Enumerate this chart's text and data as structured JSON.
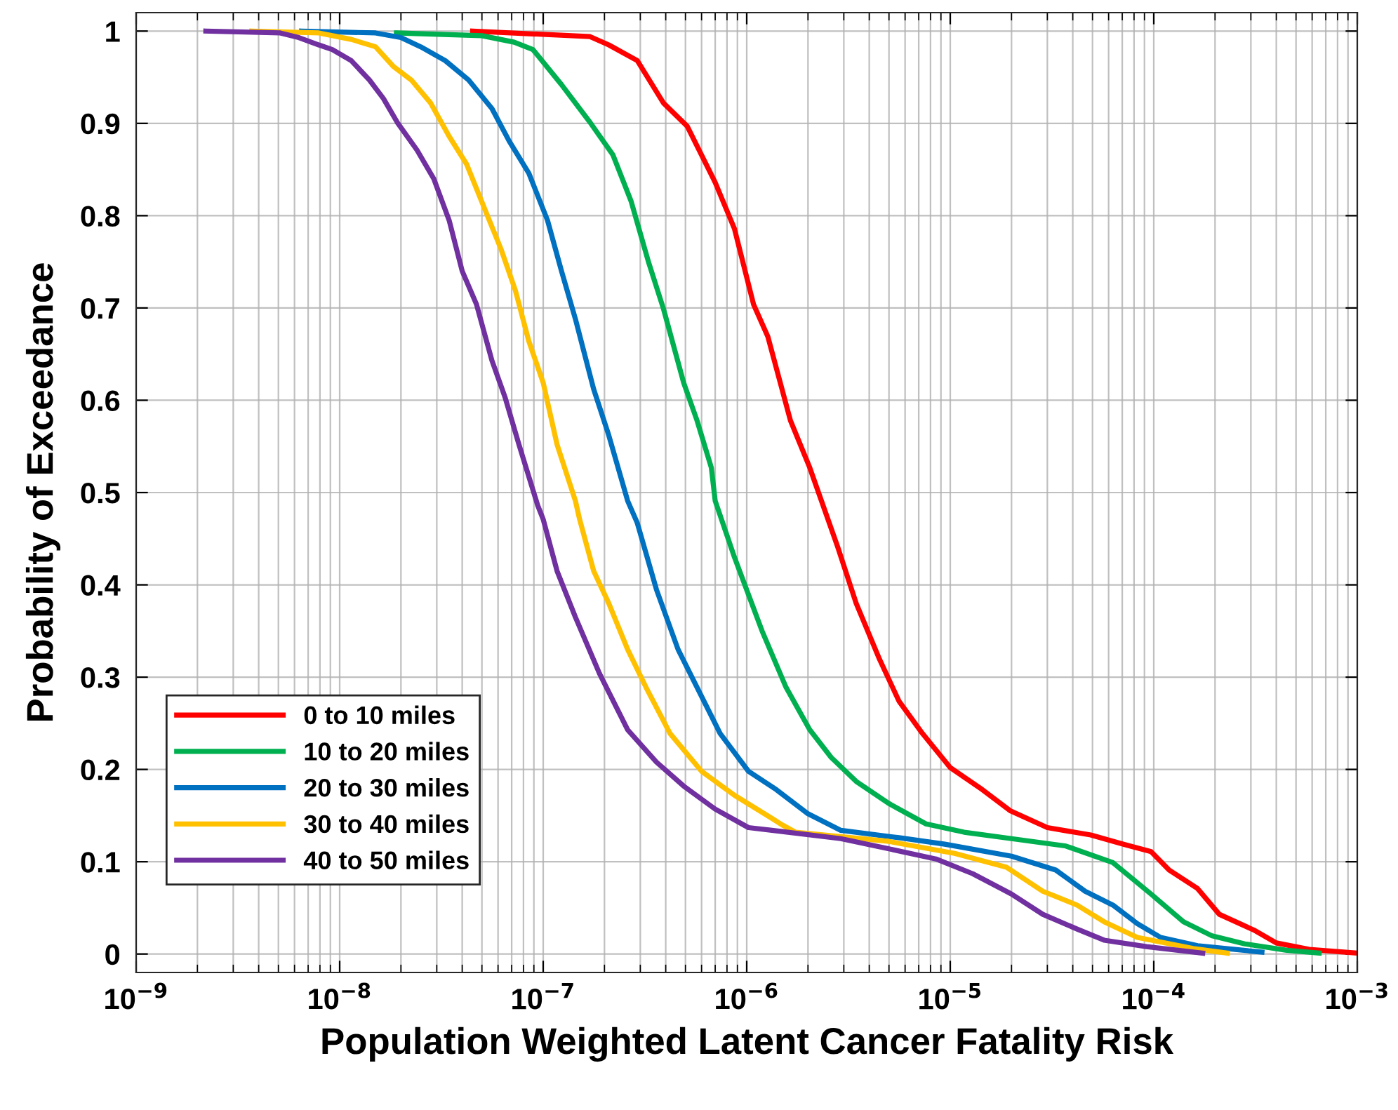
{
  "chart_data": {
    "type": "line",
    "xlabel": "Population Weighted Latent Cancer Fatality Risk",
    "ylabel": "Probability of Exceedance",
    "log": "x",
    "grid": true,
    "legend": "bottom left",
    "line_style": "solid",
    "marker": "none",
    "xlim": [
      1e-09,
      0.001
    ],
    "xticks": [
      {
        "value": 1e-09,
        "label": "10$^{−9}$"
      },
      {
        "value": 1e-08,
        "label": "10$^{−8}$"
      },
      {
        "value": 1e-07,
        "label": "10$^{−7}$"
      },
      {
        "value": 1e-06,
        "label": "10$^{−6}$"
      },
      {
        "value": 1e-05,
        "label": "10$^{−5}$"
      },
      {
        "value": 0.0001,
        "label": "10$^{−4}$"
      },
      {
        "value": 0.001,
        "label": "10$^{−3}$"
      }
    ],
    "ylim": [
      -0.02,
      1.02
    ],
    "yticks": [
      0,
      0.1,
      0.2,
      0.3,
      0.4,
      0.5,
      0.6,
      0.7,
      0.8,
      0.9,
      1
    ],
    "series": [
      {
        "name": "0 to 10 miles",
        "color": "#ff0000",
        "x": [
          4.5e-08,
          1.7e-07,
          2.1e-07,
          2.9e-07,
          3.9e-07,
          5.1e-07,
          7e-07,
          8.7e-07,
          1.08e-06,
          1.27e-06,
          1.64e-06,
          2.04e-06,
          2.8e-06,
          3.45e-06,
          4.5e-06,
          5.6e-06,
          7.3e-06,
          1e-05,
          1.44e-05,
          1.98e-05,
          3e-05,
          4.9e-05,
          7.1e-05,
          9.7e-05,
          0.000119,
          0.000164,
          0.00021,
          0.00031,
          0.0004,
          0.00058,
          0.001
        ],
        "values": [
          1.0,
          0.994,
          0.985,
          0.968,
          0.922,
          0.897,
          0.836,
          0.786,
          0.704,
          0.669,
          0.578,
          0.527,
          0.441,
          0.38,
          0.319,
          0.274,
          0.239,
          0.202,
          0.178,
          0.155,
          0.137,
          0.129,
          0.119,
          0.111,
          0.091,
          0.071,
          0.043,
          0.026,
          0.012,
          0.005,
          0.001
        ]
      },
      {
        "name": "10 to 20 miles",
        "color": "#00b050",
        "x": [
          1.9e-08,
          5e-08,
          7.2e-08,
          8.9e-08,
          1.23e-07,
          1.7e-07,
          2.2e-07,
          2.7e-07,
          3.3e-07,
          3.9e-07,
          4.9e-07,
          5.7e-07,
          6.7e-07,
          7e-07,
          8.7e-07,
          1.19e-06,
          1.56e-06,
          2.04e-06,
          2.6e-06,
          3.45e-06,
          5e-06,
          7.6e-06,
          1.17e-05,
          2e-05,
          3.7e-05,
          6.3e-05,
          9.7e-05,
          0.00014,
          0.000192,
          0.00028,
          0.00045,
          0.00065
        ],
        "values": [
          0.998,
          0.995,
          0.988,
          0.98,
          0.942,
          0.901,
          0.866,
          0.816,
          0.749,
          0.699,
          0.619,
          0.578,
          0.527,
          0.491,
          0.43,
          0.35,
          0.289,
          0.243,
          0.213,
          0.187,
          0.163,
          0.141,
          0.132,
          0.125,
          0.117,
          0.099,
          0.065,
          0.035,
          0.02,
          0.011,
          0.004,
          0.001
        ]
      },
      {
        "name": "20 to 30 miles",
        "color": "#0070c0",
        "x": [
          6.5e-09,
          1.5e-08,
          2e-08,
          2.5e-08,
          3.3e-08,
          4.3e-08,
          5.6e-08,
          6.8e-08,
          8.5e-08,
          1.05e-07,
          1.23e-07,
          1.44e-07,
          1.77e-07,
          2.1e-07,
          2.6e-07,
          2.9e-07,
          3.6e-07,
          4.6e-07,
          5.7e-07,
          7.4e-07,
          1.02e-06,
          1.4e-06,
          2e-06,
          2.9e-06,
          5.6e-06,
          9.4e-06,
          2e-05,
          3.3e-05,
          4.6e-05,
          6.3e-05,
          8.3e-05,
          0.000108,
          0.000164,
          0.00034
        ],
        "values": [
          1.0,
          0.998,
          0.993,
          0.983,
          0.968,
          0.947,
          0.916,
          0.881,
          0.846,
          0.795,
          0.74,
          0.688,
          0.612,
          0.562,
          0.491,
          0.467,
          0.395,
          0.33,
          0.289,
          0.239,
          0.198,
          0.178,
          0.152,
          0.134,
          0.126,
          0.119,
          0.106,
          0.091,
          0.068,
          0.053,
          0.033,
          0.018,
          0.009,
          0.002
        ]
      },
      {
        "name": "30 to 40 miles",
        "color": "#ffc000",
        "x": [
          3.7e-09,
          7.9e-09,
          1.14e-08,
          1.5e-08,
          1.83e-08,
          2.25e-08,
          2.8e-08,
          3.45e-08,
          4.2e-08,
          5.3e-08,
          6.2e-08,
          7.3e-08,
          8.5e-08,
          1e-07,
          1.17e-07,
          1.44e-07,
          1.51e-07,
          1.77e-07,
          2.1e-07,
          2.6e-07,
          3.2e-07,
          4.2e-07,
          6e-07,
          8.7e-07,
          1.33e-06,
          1.49e-06,
          1.74e-06,
          5e-06,
          1.05e-05,
          1.89e-05,
          2.85e-05,
          4.2e-05,
          5.7e-05,
          8.3e-05,
          0.000156,
          0.00023
        ],
        "values": [
          1.0,
          0.998,
          0.991,
          0.983,
          0.962,
          0.947,
          0.922,
          0.886,
          0.856,
          0.801,
          0.764,
          0.719,
          0.664,
          0.619,
          0.552,
          0.491,
          0.471,
          0.415,
          0.38,
          0.33,
          0.289,
          0.239,
          0.198,
          0.172,
          0.147,
          0.14,
          0.132,
          0.122,
          0.109,
          0.094,
          0.068,
          0.053,
          0.035,
          0.018,
          0.006,
          0.001
        ]
      },
      {
        "name": "40 to 50 miles",
        "color": "#7030a0",
        "x": [
          2.2e-09,
          5.1e-09,
          6.3e-09,
          7.9e-09,
          9.2e-09,
          1.14e-08,
          1.4e-08,
          1.64e-08,
          1.92e-08,
          2.4e-08,
          2.9e-08,
          3.45e-08,
          4e-08,
          4.7e-08,
          5.6e-08,
          6.5e-08,
          7.6e-08,
          9.4e-08,
          1e-07,
          1.17e-07,
          1.44e-07,
          1.89e-07,
          2.6e-07,
          3.6e-07,
          4.9e-07,
          7e-07,
          1.02e-06,
          1.33e-06,
          2.9e-06,
          5e-06,
          8.5e-06,
          1.29e-05,
          2e-05,
          2.85e-05,
          4.2e-05,
          5.7e-05,
          9.2e-05,
          0.000174
        ],
        "values": [
          1.0,
          0.998,
          0.993,
          0.985,
          0.98,
          0.968,
          0.947,
          0.927,
          0.901,
          0.871,
          0.84,
          0.795,
          0.74,
          0.704,
          0.643,
          0.603,
          0.552,
          0.486,
          0.471,
          0.415,
          0.365,
          0.304,
          0.243,
          0.208,
          0.182,
          0.157,
          0.137,
          0.134,
          0.125,
          0.114,
          0.103,
          0.087,
          0.065,
          0.043,
          0.027,
          0.015,
          0.008,
          0.001
        ]
      }
    ]
  }
}
